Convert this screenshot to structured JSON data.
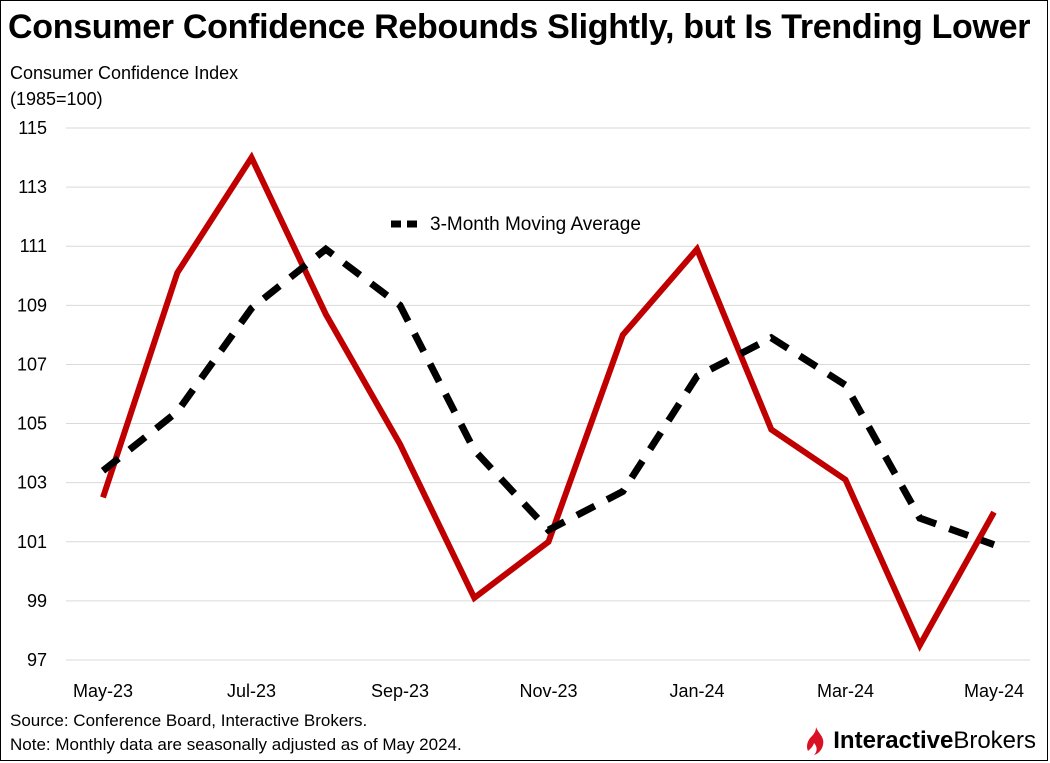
{
  "chart_data": {
    "type": "line",
    "title": "Consumer Confidence Rebounds Slightly, but Is Trending Lower",
    "ylabel_lines": [
      "Consumer Confidence Index",
      "(1985=100)"
    ],
    "x": [
      "May-23",
      "Jun-23",
      "Jul-23",
      "Aug-23",
      "Sep-23",
      "Oct-23",
      "Nov-23",
      "Dec-23",
      "Jan-24",
      "Feb-24",
      "Mar-24",
      "Apr-24",
      "May-24"
    ],
    "x_tick_labels": [
      "May-23",
      "Jul-23",
      "Sep-23",
      "Nov-23",
      "Jan-24",
      "Mar-24",
      "May-24"
    ],
    "yticks": [
      97,
      99,
      101,
      103,
      105,
      107,
      109,
      111,
      113,
      115
    ],
    "ylim": [
      97,
      115
    ],
    "grid": true,
    "legend_position": "inside-top-center",
    "series": [
      {
        "values": [
          102.5,
          110.1,
          114.0,
          108.7,
          104.3,
          99.1,
          101.0,
          108.0,
          110.9,
          104.8,
          103.1,
          97.5,
          102.0
        ],
        "color": "#c00000",
        "style": "solid"
      },
      {
        "name": "3-Month Moving Average",
        "values": [
          103.4,
          105.4,
          108.9,
          110.9,
          109.0,
          104.1,
          101.4,
          102.7,
          106.6,
          107.9,
          106.3,
          101.8,
          100.9
        ],
        "color": "#000000",
        "style": "dashed"
      }
    ]
  },
  "footer": {
    "source": "Source: Conference Board, Interactive Brokers.",
    "note": "Note: Monthly data are seasonally adjusted as of May 2024."
  },
  "logo": {
    "brand_bold": "Interactive",
    "brand_regular": "Brokers",
    "icon": "interactive-brokers-flame-icon",
    "color": "#d81222"
  }
}
